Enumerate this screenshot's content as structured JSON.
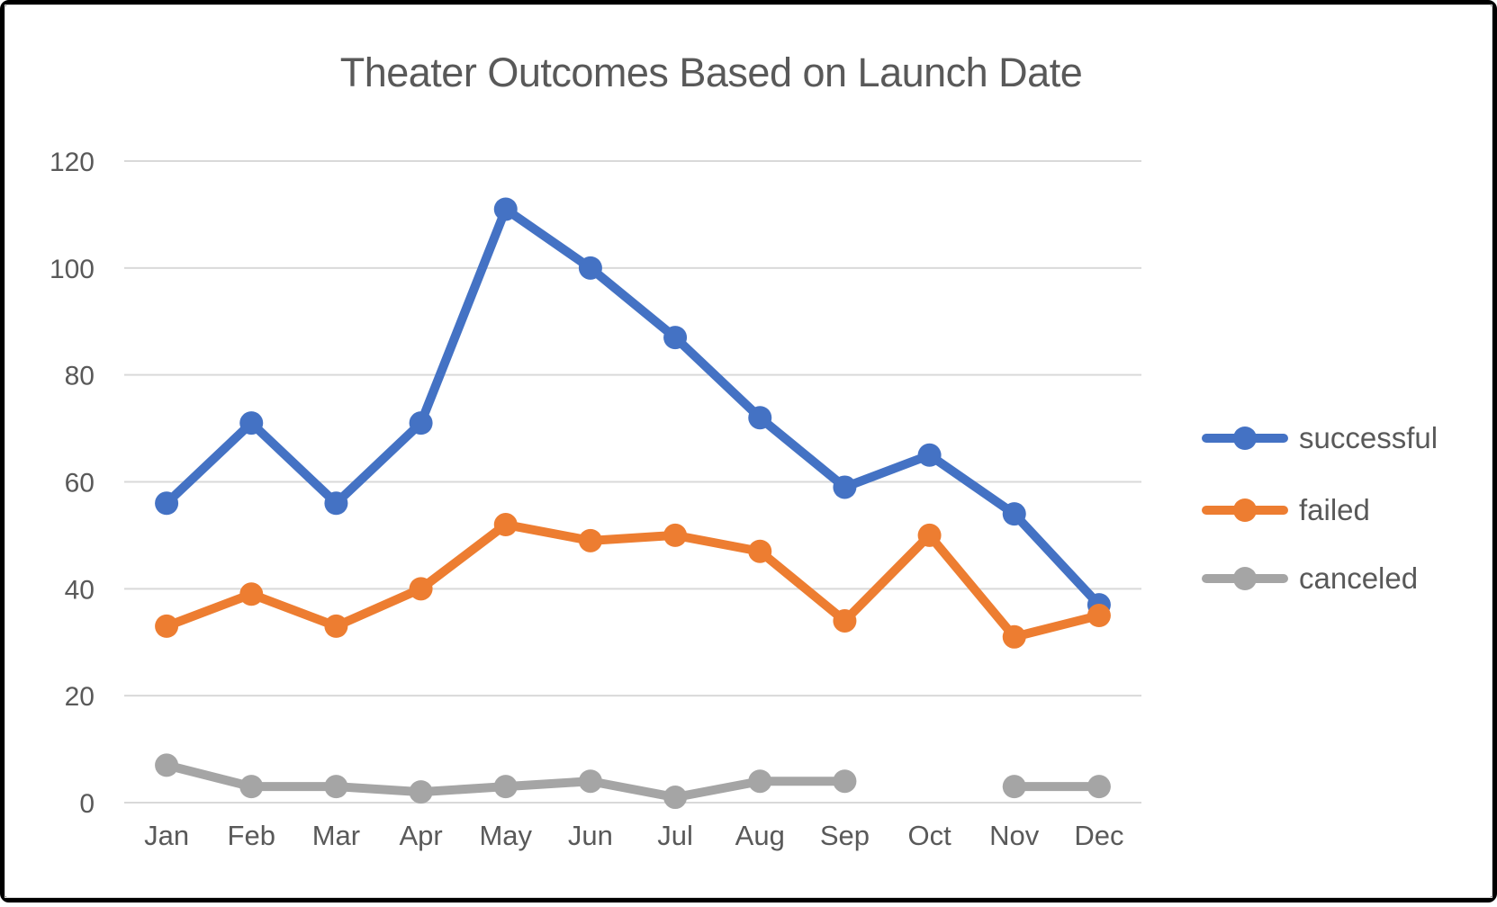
{
  "chart_data": {
    "type": "line",
    "title": "Theater Outcomes Based on Launch Date",
    "categories": [
      "Jan",
      "Feb",
      "Mar",
      "Apr",
      "May",
      "Jun",
      "Jul",
      "Aug",
      "Sep",
      "Oct",
      "Nov",
      "Dec"
    ],
    "series": [
      {
        "name": "successful",
        "color": "#4472C4",
        "values": [
          56,
          71,
          56,
          71,
          111,
          100,
          87,
          72,
          59,
          65,
          54,
          37
        ]
      },
      {
        "name": "failed",
        "color": "#ED7D31",
        "values": [
          33,
          39,
          33,
          40,
          52,
          49,
          50,
          47,
          34,
          50,
          31,
          35
        ]
      },
      {
        "name": "canceled",
        "color": "#A5A5A5",
        "values": [
          7,
          3,
          3,
          2,
          3,
          4,
          1,
          4,
          4,
          null,
          3,
          3
        ]
      }
    ],
    "xlabel": "",
    "ylabel": "",
    "ylim": [
      0,
      120
    ],
    "yticks": [
      0,
      20,
      40,
      60,
      80,
      100,
      120
    ],
    "grid": true,
    "gridline_color": "#D9D9D9",
    "axis_label_color": "#595959",
    "title_color": "#595959",
    "legend_position": "right",
    "frame_border_color": "#000000",
    "gap_note": "canceled series has no data point for Oct"
  }
}
